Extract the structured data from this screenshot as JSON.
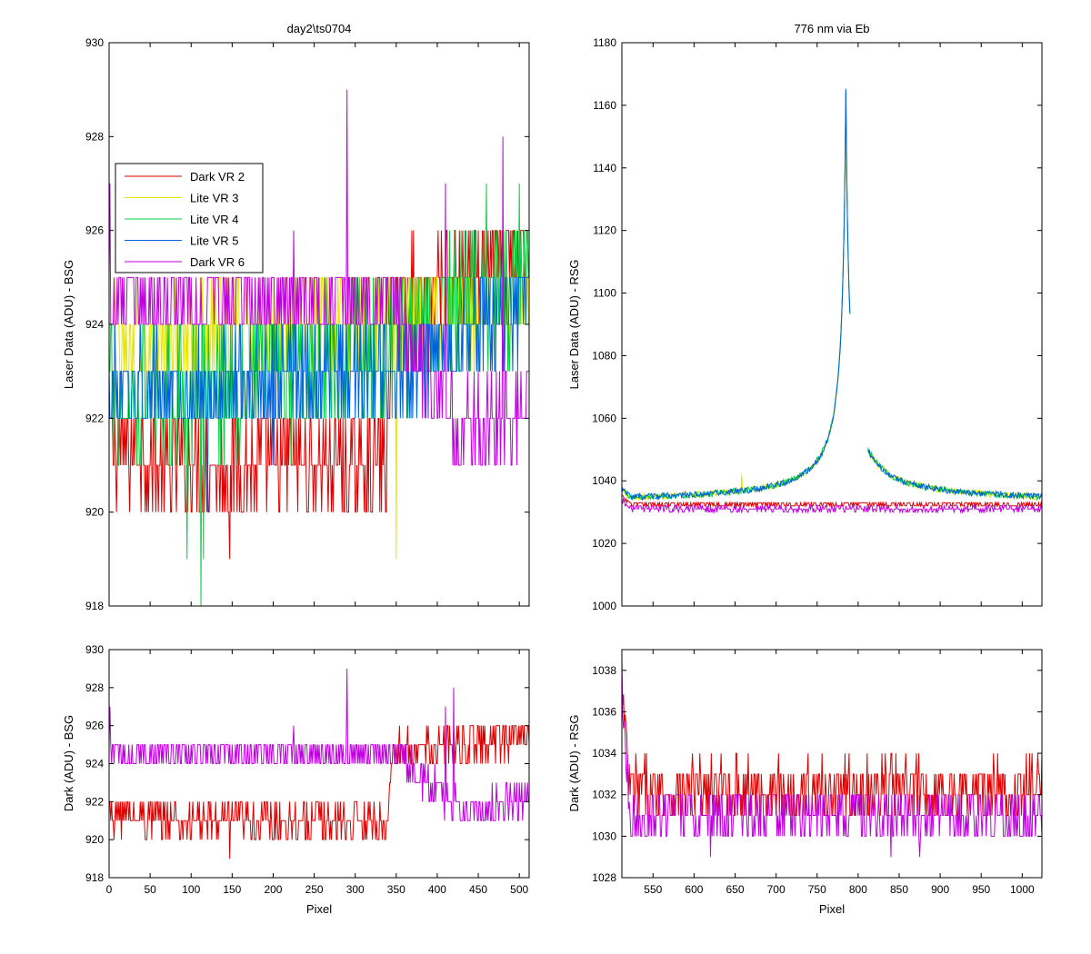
{
  "colors": {
    "dark_vr_2": "#e00000",
    "lite_vr_3": "#e6e600",
    "lite_vr_4": "#00d040",
    "lite_vr_5": "#0060e0",
    "dark_vr_6": "#c000e0"
  },
  "chart_data": [
    {
      "type": "line",
      "title": "day2\\ts0704",
      "xlabel": "",
      "ylabel": "Laser Data (ADU) - BSG",
      "xlim": [
        0,
        512
      ],
      "ylim": [
        918,
        930
      ],
      "yticks": [
        918,
        920,
        922,
        924,
        926,
        928,
        930
      ],
      "grid": false,
      "legend_position": "upper-left",
      "series": [
        {
          "name": "Dark VR 2",
          "color": "#e00000",
          "base": 921,
          "spread": 1,
          "spikes": [
            [
              147,
              919
            ]
          ],
          "segments": [
            [
              0,
              921.5
            ],
            [
              60,
              921
            ],
            [
              340,
              921
            ],
            [
              345,
              924.5
            ],
            [
              512,
              925.5
            ]
          ]
        },
        {
          "name": "Lite VR 3",
          "color": "#e6e600",
          "base": 923.5,
          "spread": 1,
          "spikes": [
            [
              350,
              919
            ]
          ],
          "segments": [
            [
              0,
              923.5
            ],
            [
              512,
              924.5
            ]
          ]
        },
        {
          "name": "Lite VR 4",
          "color": "#00d040",
          "base": 923,
          "spread": 1.5,
          "spikes": [
            [
              95,
              919
            ],
            [
              112,
              918
            ],
            [
              115,
              919
            ],
            [
              460,
              927
            ],
            [
              500,
              927
            ]
          ],
          "segments": [
            [
              0,
              922.5
            ],
            [
              250,
              923
            ],
            [
              512,
              925
            ]
          ]
        },
        {
          "name": "Lite VR 5",
          "color": "#0060e0",
          "base": 922.5,
          "spread": 1,
          "spikes": [
            [
              120,
              920
            ],
            [
              200,
              921
            ]
          ],
          "segments": [
            [
              0,
              922.5
            ],
            [
              350,
              923
            ],
            [
              512,
              924.5
            ]
          ]
        },
        {
          "name": "Dark VR 6",
          "color": "#c000e0",
          "base": 924.5,
          "spread": 1,
          "spikes": [
            [
              1,
              927
            ],
            [
              225,
              926
            ],
            [
              290,
              929
            ],
            [
              410,
              927
            ],
            [
              480,
              928
            ]
          ],
          "segments": [
            [
              0,
              924.5
            ],
            [
              350,
              924.5
            ],
            [
              390,
              923
            ],
            [
              430,
              921.5
            ],
            [
              480,
              922
            ],
            [
              512,
              922.5
            ]
          ]
        }
      ]
    },
    {
      "type": "line",
      "title": "776 nm via Eb",
      "xlabel": "",
      "ylabel": "Laser Data (ADU) - RSG",
      "xlim": [
        512,
        1024
      ],
      "ylim": [
        1000,
        1180
      ],
      "yticks": [
        1000,
        1020,
        1040,
        1060,
        1080,
        1100,
        1120,
        1140,
        1160,
        1180
      ],
      "grid": false,
      "peak": {
        "x": 785,
        "y": 1165
      },
      "series": [
        {
          "name": "Dark VR 2",
          "color": "#e00000",
          "shape": "flat",
          "level": 1032.5,
          "start": 1035
        },
        {
          "name": "Lite VR 3",
          "color": "#e6e600",
          "shape": "peak",
          "level": 1033,
          "start": 1036,
          "spike": [
            658,
            1042
          ]
        },
        {
          "name": "Lite VR 4",
          "color": "#00d040",
          "shape": "peak",
          "level": 1033,
          "start": 1036
        },
        {
          "name": "Lite VR 5",
          "color": "#0060e0",
          "shape": "peak",
          "level": 1033,
          "start": 1036
        },
        {
          "name": "Dark VR 6",
          "color": "#c000e0",
          "shape": "flat",
          "level": 1031,
          "start": 1034
        }
      ]
    },
    {
      "type": "line",
      "title": "",
      "xlabel": "Pixel",
      "ylabel": "Dark (ADU) - BSG",
      "xlim": [
        0,
        512
      ],
      "ylim": [
        918,
        930
      ],
      "xticks": [
        0,
        50,
        100,
        150,
        200,
        250,
        300,
        350,
        400,
        450,
        500
      ],
      "yticks": [
        918,
        920,
        922,
        924,
        926,
        928,
        930
      ],
      "grid": false,
      "series": [
        {
          "name": "Dark VR 2",
          "color": "#e00000",
          "base": 921,
          "spread": 1,
          "spikes": [
            [
              147,
              919
            ]
          ],
          "segments": [
            [
              0,
              921.5
            ],
            [
              60,
              921
            ],
            [
              340,
              921
            ],
            [
              345,
              924.5
            ],
            [
              512,
              925.5
            ]
          ]
        },
        {
          "name": "Dark VR 6",
          "color": "#c000e0",
          "base": 924.5,
          "spread": 1,
          "spikes": [
            [
              1,
              927
            ],
            [
              225,
              926
            ],
            [
              290,
              929
            ],
            [
              410,
              927
            ],
            [
              420,
              928
            ]
          ],
          "segments": [
            [
              0,
              924.5
            ],
            [
              350,
              924.5
            ],
            [
              390,
              923
            ],
            [
              430,
              921.5
            ],
            [
              480,
              922
            ],
            [
              512,
              922.5
            ]
          ]
        }
      ]
    },
    {
      "type": "line",
      "title": "",
      "xlabel": "Pixel",
      "ylabel": "Dark (ADU) - RSG",
      "xlim": [
        512,
        1024
      ],
      "ylim": [
        1028,
        1039
      ],
      "xticks": [
        550,
        600,
        650,
        700,
        750,
        800,
        850,
        900,
        950,
        1000
      ],
      "yticks": [
        1028,
        1030,
        1032,
        1034,
        1036,
        1038
      ],
      "grid": false,
      "series": [
        {
          "name": "Dark VR 2",
          "color": "#e00000",
          "shape": "flat",
          "level": 1032.2,
          "start": 1037,
          "spread": 1.5
        },
        {
          "name": "Dark VR 6",
          "color": "#c000e0",
          "shape": "flat",
          "level": 1031,
          "start": 1037.5,
          "spread": 1.2,
          "spikes": [
            [
              620,
              1029
            ],
            [
              840,
              1029
            ],
            [
              875,
              1029
            ]
          ]
        }
      ]
    }
  ]
}
